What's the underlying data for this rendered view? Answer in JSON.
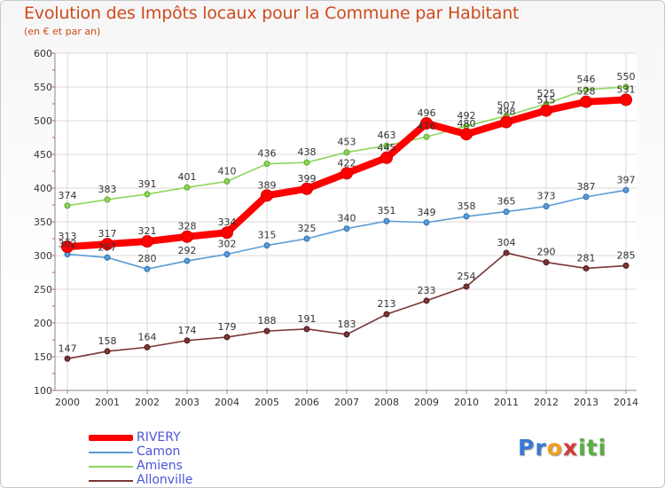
{
  "chart_data": {
    "type": "line",
    "title": "Evolution des Impôts locaux pour la Commune par Habitant",
    "subtitle": "(en € et par an)",
    "xlabel": "",
    "ylabel": "",
    "categories": [
      "2000",
      "2001",
      "2002",
      "2003",
      "2004",
      "2005",
      "2006",
      "2007",
      "2008",
      "2009",
      "2010",
      "2011",
      "2012",
      "2013",
      "2014"
    ],
    "ylim": [
      100,
      600
    ],
    "yticks": [
      100,
      150,
      200,
      250,
      300,
      350,
      400,
      450,
      500,
      550,
      600
    ],
    "grid": true,
    "legend_position": "bottom-left",
    "series": [
      {
        "name": "RIVERY",
        "color": "#ff0000",
        "values": [
          313,
          317,
          321,
          328,
          334,
          389,
          399,
          422,
          445,
          496,
          480,
          498,
          515,
          528,
          531
        ],
        "labels": [
          "313",
          "317",
          "321",
          "328",
          "334",
          "389",
          "399",
          "422",
          "445",
          "496",
          "480",
          "498",
          "515",
          "528",
          "531"
        ]
      },
      {
        "name": "Camon",
        "color": "#5b9bd5",
        "values": [
          302,
          297,
          280,
          292,
          302,
          315,
          325,
          340,
          351,
          349,
          358,
          365,
          373,
          387,
          397
        ],
        "labels": [
          "302",
          "297",
          "280",
          "292",
          "302",
          "315",
          "325",
          "340",
          "351",
          "349",
          "358",
          "365",
          "373",
          "387",
          "397"
        ]
      },
      {
        "name": "Amiens",
        "color": "#8ed65a",
        "values": [
          374,
          383,
          391,
          401,
          410,
          436,
          438,
          453,
          463,
          476,
          492,
          507,
          525,
          546,
          550
        ],
        "labels": [
          "374",
          "383",
          "391",
          "401",
          "410",
          "436",
          "438",
          "453",
          "463",
          "476",
          "492",
          "507",
          "525",
          "546",
          "550"
        ]
      },
      {
        "name": "Allonville",
        "color": "#7a3636",
        "values": [
          147,
          158,
          164,
          174,
          179,
          188,
          191,
          183,
          213,
          233,
          254,
          304,
          290,
          281,
          285
        ],
        "labels": [
          "147",
          "158",
          "164",
          "174",
          "179",
          "188",
          "191",
          "183",
          "213",
          "233",
          "254",
          "304",
          "290",
          "281",
          "285"
        ]
      }
    ]
  },
  "branding": {
    "logo_parts": [
      "Pr",
      "o",
      "x",
      "iti"
    ]
  }
}
